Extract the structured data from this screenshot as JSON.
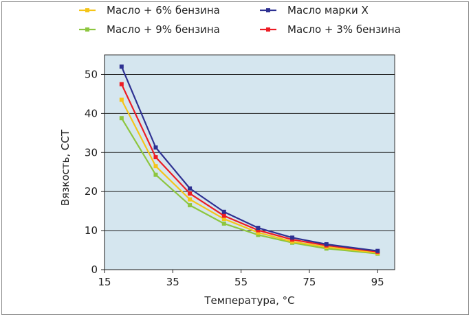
{
  "chart_data": {
    "type": "line",
    "title": "",
    "xlabel": "Температура, °C",
    "ylabel": "Вязкость, ССТ",
    "xlim": [
      15,
      100
    ],
    "ylim": [
      0,
      55
    ],
    "xticks": [
      15,
      35,
      55,
      75,
      95
    ],
    "yticks": [
      0,
      10,
      20,
      30,
      40,
      50
    ],
    "grid": "horizontal",
    "plot_background": "#d5e6ef",
    "legend_position": "top",
    "series": [
      {
        "name": "Масло + 6% бензина",
        "color": "#f5c518",
        "x": [
          20,
          30,
          40,
          50,
          60,
          70,
          80,
          95
        ],
        "y": [
          43.5,
          26.5,
          18,
          13,
          9.5,
          7.2,
          5.8,
          4.3
        ]
      },
      {
        "name": "Масло марки X",
        "color": "#2e3192",
        "x": [
          20,
          30,
          40,
          50,
          60,
          70,
          80,
          95
        ],
        "y": [
          52,
          31.3,
          20.8,
          14.8,
          10.7,
          8.2,
          6.5,
          4.8
        ]
      },
      {
        "name": "Масло + 9% бензина",
        "color": "#8dc63f",
        "x": [
          20,
          30,
          40,
          50,
          60,
          70,
          80,
          95
        ],
        "y": [
          38.8,
          24.3,
          16.5,
          11.8,
          8.9,
          6.9,
          5.4,
          4.1
        ]
      },
      {
        "name": "Масло + 3% бензина",
        "color": "#ed1c24",
        "x": [
          20,
          30,
          40,
          50,
          60,
          70,
          80,
          95
        ],
        "y": [
          47.5,
          28.8,
          19.5,
          13.8,
          10.1,
          7.7,
          6.2,
          4.6
        ]
      }
    ]
  }
}
